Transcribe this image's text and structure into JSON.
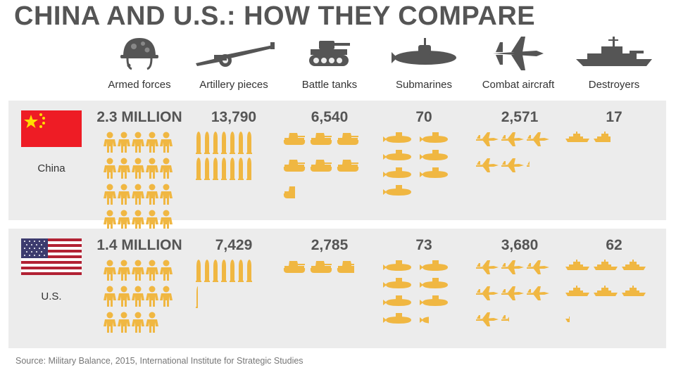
{
  "title": "CHINA AND U.S.: HOW THEY COMPARE",
  "colors": {
    "icon": "#f0b742",
    "header_icon": "#555555",
    "panel": "#ececec"
  },
  "categories": [
    {
      "key": "armed",
      "label": "Armed forces",
      "icon": "soldier-helmet-icon"
    },
    {
      "key": "artillery",
      "label": "Artillery pieces",
      "icon": "howitzer-icon"
    },
    {
      "key": "tanks",
      "label": "Battle tanks",
      "icon": "tank-icon"
    },
    {
      "key": "subs",
      "label": "Submarines",
      "icon": "submarine-icon"
    },
    {
      "key": "aircraft",
      "label": "Combat aircraft",
      "icon": "fighter-jet-icon"
    },
    {
      "key": "destroyers",
      "label": "Destroyers",
      "icon": "destroyer-ship-icon"
    }
  ],
  "countries": [
    {
      "name": "China",
      "flag": "china-flag-icon",
      "values": [
        "2.3 MILLION",
        "13,790",
        "6,540",
        "70",
        "2,571",
        "17"
      ]
    },
    {
      "name": "U.S.",
      "flag": "us-flag-icon",
      "values": [
        "1.4 MILLION",
        "7,429",
        "2,785",
        "73",
        "3,680",
        "62"
      ]
    }
  ],
  "chart_data": {
    "type": "table",
    "title": "CHINA AND U.S.: HOW THEY COMPARE",
    "columns": [
      "Armed forces",
      "Artillery pieces",
      "Battle tanks",
      "Submarines",
      "Combat aircraft",
      "Destroyers"
    ],
    "series": [
      {
        "name": "China",
        "values": [
          2300000,
          13790,
          6540,
          70,
          2571,
          17
        ]
      },
      {
        "name": "U.S.",
        "values": [
          1400000,
          7429,
          2785,
          73,
          3680,
          62
        ]
      }
    ]
  },
  "source": "Source: Military Balance, 2015, International Institute for Strategic Studies"
}
